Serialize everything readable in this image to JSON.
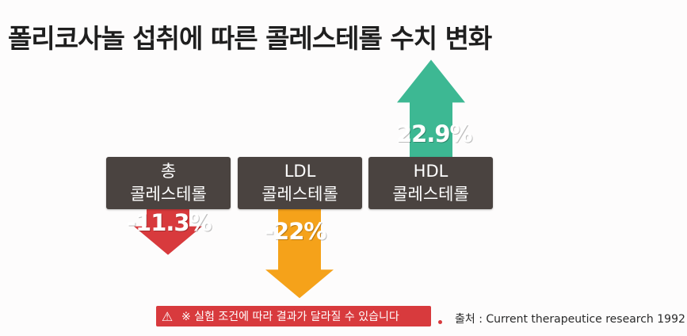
{
  "title": "폴리코사놀 섭취에 따른 콜레스테롤 수치 변화",
  "chart_data": {
    "type": "bar",
    "categories": [
      {
        "line1": "총",
        "line2": "콜레스테롤"
      },
      {
        "line1": "LDL",
        "line2": "콜레스테롤"
      },
      {
        "line1": "HDL",
        "line2": "콜레스테롤"
      }
    ],
    "values": [
      -11.3,
      -22,
      22.9
    ],
    "value_labels": [
      "-11.3%",
      "-22%",
      "22.9%"
    ],
    "colors": [
      "#d83a3d",
      "#f5a21a",
      "#3db893"
    ]
  },
  "notice": {
    "icon": "warning-icon",
    "text": "※ 실험 조건에 따라 결과가 달라질 수 있습니다"
  },
  "source": "출처 : Current therapeutice research 1992"
}
